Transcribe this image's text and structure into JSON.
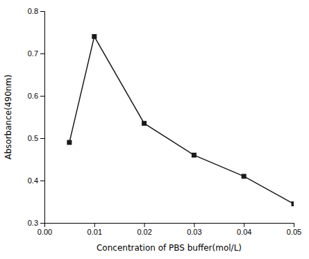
{
  "chart_data": {
    "type": "line",
    "x": [
      0.005,
      0.01,
      0.02,
      0.03,
      0.04,
      0.05
    ],
    "values": [
      0.49,
      0.74,
      0.535,
      0.46,
      0.41,
      0.345
    ],
    "xlabel": "Concentration of PBS buffer(mol/L)",
    "ylabel": "Absorbance(490nm)",
    "xlim": [
      0.0,
      0.05
    ],
    "ylim": [
      0.3,
      0.8
    ],
    "xticks": [
      {
        "value": 0,
        "label": "0.00"
      },
      0.01,
      0.02,
      0.03,
      0.04,
      0.05
    ],
    "yticks": [
      0.3,
      0.4,
      0.5,
      0.6,
      0.7,
      0.8
    ],
    "color": "#1a1a1a",
    "marker": "square"
  }
}
